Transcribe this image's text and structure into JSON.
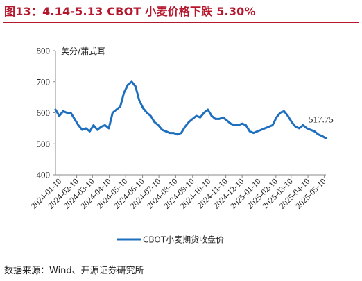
{
  "figure": {
    "title": "图13：4.14-5.13 CBOT 小麦价格下跌 5.30%",
    "source": "数据来源：Wind、开源证券研究所"
  },
  "chart_data": {
    "type": "line",
    "title": "",
    "unit_label": "美分/蒲式耳",
    "xlabel": "",
    "ylabel": "美分/蒲式耳",
    "ylim": [
      400,
      800
    ],
    "yticks": [
      400,
      500,
      600,
      700,
      800
    ],
    "grid": false,
    "legend_position": "bottom",
    "x_tick_labels": [
      "2024-01-10",
      "2024-02-10",
      "2024-03-10",
      "2024-04-10",
      "2024-05-10",
      "2024-06-10",
      "2024-07-10",
      "2024-08-10",
      "2024-09-10",
      "2024-10-10",
      "2024-11-10",
      "2024-12-10",
      "2025-01-10",
      "2025-02-10",
      "2025-03-10",
      "2025-04-10",
      "2025-05-10"
    ],
    "series": [
      {
        "name": "CBOT小麦期货收盘价",
        "color": "#1f6fbf",
        "x": [
          "2024-01-02",
          "2024-01-09",
          "2024-01-16",
          "2024-01-23",
          "2024-01-30",
          "2024-02-06",
          "2024-02-13",
          "2024-02-20",
          "2024-02-27",
          "2024-03-05",
          "2024-03-12",
          "2024-03-19",
          "2024-03-26",
          "2024-04-02",
          "2024-04-09",
          "2024-04-16",
          "2024-04-23",
          "2024-04-30",
          "2024-05-07",
          "2024-05-14",
          "2024-05-21",
          "2024-05-28",
          "2024-06-04",
          "2024-06-11",
          "2024-06-18",
          "2024-06-25",
          "2024-07-02",
          "2024-07-09",
          "2024-07-16",
          "2024-07-23",
          "2024-07-30",
          "2024-08-06",
          "2024-08-13",
          "2024-08-20",
          "2024-08-27",
          "2024-09-03",
          "2024-09-10",
          "2024-09-17",
          "2024-09-24",
          "2024-10-01",
          "2024-10-08",
          "2024-10-15",
          "2024-10-22",
          "2024-10-29",
          "2024-11-05",
          "2024-11-12",
          "2024-11-19",
          "2024-11-26",
          "2024-12-03",
          "2024-12-10",
          "2024-12-17",
          "2024-12-24",
          "2024-12-31",
          "2025-01-07",
          "2025-01-14",
          "2025-01-21",
          "2025-01-28",
          "2025-02-04",
          "2025-02-11",
          "2025-02-18",
          "2025-02-25",
          "2025-03-04",
          "2025-03-11",
          "2025-03-18",
          "2025-03-25",
          "2025-04-01",
          "2025-04-08",
          "2025-04-15",
          "2025-04-22",
          "2025-04-29",
          "2025-05-06",
          "2025-05-13"
        ],
        "values": [
          610,
          590,
          605,
          600,
          600,
          580,
          560,
          545,
          550,
          540,
          560,
          545,
          555,
          560,
          550,
          600,
          610,
          620,
          665,
          690,
          700,
          685,
          640,
          615,
          600,
          590,
          570,
          560,
          545,
          540,
          535,
          535,
          530,
          535,
          555,
          570,
          580,
          590,
          585,
          600,
          610,
          590,
          580,
          580,
          585,
          575,
          565,
          560,
          560,
          565,
          560,
          540,
          535,
          540,
          545,
          550,
          555,
          560,
          585,
          600,
          605,
          590,
          570,
          555,
          550,
          560,
          550,
          545,
          540,
          530,
          525,
          517.75
        ]
      }
    ],
    "annotations": [
      {
        "text": "517.75",
        "x": "2025-05-13",
        "y": 517.75
      }
    ]
  }
}
